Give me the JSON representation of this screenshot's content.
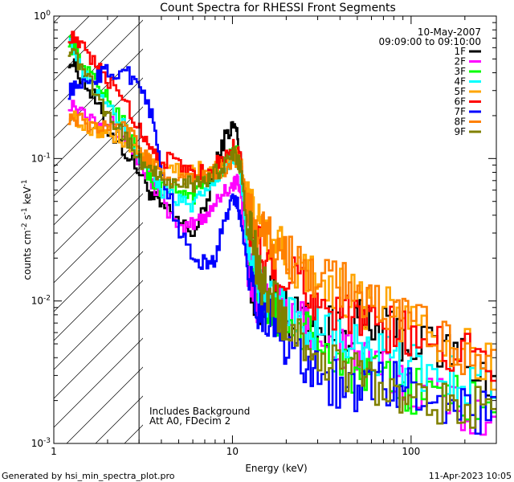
{
  "chart_data": {
    "type": "line",
    "title": "Count Spectra for RHESSI Front Segments",
    "xlabel": "Energy (keV)",
    "ylabel": "counts cm-2 s-1 keV-1",
    "xscale": "log",
    "yscale": "log",
    "xlim": [
      1,
      300
    ],
    "ylim": [
      0.001,
      1
    ],
    "x_tick_labels": [
      "1",
      "10",
      "100"
    ],
    "y_tick_labels": [
      "10-3",
      "10-2",
      "10-1",
      "10 0"
    ],
    "date": "10-May-2007",
    "time_range": "09:09:00 to 09:10:00",
    "hatch_cutoff_kev": 3,
    "annotations": [
      "Includes Background",
      "Att A0, FDecim 2"
    ],
    "legend_position": "top-right",
    "series": [
      {
        "name": "1F",
        "color": "#000000",
        "x": [
          1.2,
          1.4,
          1.7,
          2,
          2.5,
          3,
          3.5,
          4,
          5,
          6,
          7,
          8,
          9,
          10,
          10.5,
          11,
          12,
          13,
          14,
          15,
          17,
          20,
          25,
          30,
          40,
          50,
          60,
          80,
          100,
          150,
          200,
          300
        ],
        "values": [
          0.5,
          0.38,
          0.25,
          0.16,
          0.11,
          0.08,
          0.055,
          0.045,
          0.035,
          0.03,
          0.045,
          0.09,
          0.14,
          0.17,
          0.16,
          0.1,
          0.02,
          0.012,
          0.009,
          0.011,
          0.01,
          0.008,
          0.008,
          0.006,
          0.0065,
          0.007,
          0.006,
          0.006,
          0.005,
          0.0045,
          0.004,
          0.0025
        ]
      },
      {
        "name": "2F",
        "color": "#ff00ff",
        "x": [
          1.2,
          1.4,
          1.7,
          2,
          2.5,
          3,
          3.5,
          4,
          5,
          6,
          7,
          8,
          9,
          10,
          10.5,
          11,
          12,
          13,
          14,
          15,
          17,
          20,
          25,
          30,
          40,
          50,
          60,
          80,
          100,
          150,
          200,
          300
        ],
        "values": [
          0.25,
          0.22,
          0.2,
          0.18,
          0.14,
          0.09,
          0.07,
          0.05,
          0.03,
          0.035,
          0.04,
          0.05,
          0.06,
          0.065,
          0.07,
          0.06,
          0.02,
          0.012,
          0.01,
          0.011,
          0.009,
          0.008,
          0.007,
          0.005,
          0.005,
          0.004,
          0.0035,
          0.003,
          0.0025,
          0.002,
          0.0018,
          0.0015
        ]
      },
      {
        "name": "3F",
        "color": "#00ff00",
        "x": [
          1.2,
          1.4,
          1.7,
          2,
          2.5,
          3,
          3.5,
          4,
          5,
          6,
          7,
          8,
          9,
          10,
          10.5,
          11,
          12,
          13,
          14,
          15,
          17,
          20,
          25,
          30,
          40,
          50,
          60,
          80,
          100,
          150,
          200,
          300
        ],
        "values": [
          0.7,
          0.48,
          0.35,
          0.25,
          0.18,
          0.1,
          0.07,
          0.06,
          0.06,
          0.055,
          0.07,
          0.08,
          0.09,
          0.12,
          0.11,
          0.09,
          0.03,
          0.018,
          0.012,
          0.01,
          0.008,
          0.007,
          0.006,
          0.0045,
          0.004,
          0.003,
          0.0028,
          0.0026,
          0.0024,
          0.0022,
          0.002,
          0.0018
        ]
      },
      {
        "name": "4F",
        "color": "#00ffff",
        "x": [
          1.2,
          1.4,
          1.7,
          2,
          2.5,
          3,
          3.5,
          4,
          5,
          6,
          7,
          8,
          9,
          10,
          10.5,
          11,
          12,
          13,
          14,
          15,
          17,
          20,
          25,
          30,
          40,
          50,
          60,
          80,
          100,
          150,
          200,
          300
        ],
        "values": [
          0.75,
          0.4,
          0.3,
          0.22,
          0.16,
          0.1,
          0.08,
          0.06,
          0.05,
          0.045,
          0.06,
          0.07,
          0.08,
          0.1,
          0.1,
          0.09,
          0.025,
          0.015,
          0.012,
          0.011,
          0.009,
          0.008,
          0.007,
          0.006,
          0.005,
          0.0045,
          0.004,
          0.0038,
          0.0035,
          0.003,
          0.0028,
          0.0025
        ]
      },
      {
        "name": "5F",
        "color": "#ffa500",
        "x": [
          1.2,
          1.4,
          1.7,
          2,
          2.5,
          3,
          3.5,
          4,
          5,
          6,
          7,
          8,
          9,
          10,
          10.5,
          11,
          12,
          13,
          14,
          15,
          17,
          20,
          25,
          30,
          40,
          50,
          60,
          80,
          100,
          150,
          200,
          300
        ],
        "values": [
          0.2,
          0.18,
          0.16,
          0.15,
          0.13,
          0.11,
          0.09,
          0.08,
          0.08,
          0.08,
          0.085,
          0.09,
          0.1,
          0.11,
          0.11,
          0.1,
          0.05,
          0.04,
          0.035,
          0.03,
          0.025,
          0.02,
          0.016,
          0.014,
          0.012,
          0.01,
          0.009,
          0.008,
          0.007,
          0.005,
          0.0045,
          0.003
        ]
      },
      {
        "name": "6F",
        "color": "#ff0000",
        "x": [
          1.2,
          1.4,
          1.7,
          2,
          2.5,
          3,
          3.5,
          4,
          5,
          6,
          7,
          8,
          9,
          10,
          10.5,
          11,
          12,
          13,
          14,
          15,
          17,
          20,
          25,
          30,
          40,
          50,
          60,
          80,
          100,
          150,
          200,
          300
        ],
        "values": [
          0.75,
          0.6,
          0.45,
          0.35,
          0.25,
          0.16,
          0.12,
          0.1,
          0.09,
          0.08,
          0.08,
          0.09,
          0.1,
          0.12,
          0.11,
          0.1,
          0.04,
          0.03,
          0.025,
          0.02,
          0.018,
          0.015,
          0.012,
          0.01,
          0.009,
          0.008,
          0.007,
          0.006,
          0.0055,
          0.005,
          0.0045,
          0.004
        ]
      },
      {
        "name": "7F",
        "color": "#0000ff",
        "x": [
          1.2,
          1.4,
          1.7,
          2,
          2.5,
          3,
          3.5,
          4,
          5,
          6,
          7,
          8,
          9,
          10,
          10.5,
          11,
          12,
          13,
          14,
          15,
          17,
          20,
          25,
          30,
          40,
          50,
          60,
          80,
          100,
          150,
          200,
          300
        ],
        "values": [
          0.3,
          0.32,
          0.38,
          0.4,
          0.4,
          0.35,
          0.2,
          0.08,
          0.03,
          0.02,
          0.018,
          0.02,
          0.04,
          0.05,
          0.05,
          0.04,
          0.02,
          0.012,
          0.009,
          0.008,
          0.007,
          0.005,
          0.004,
          0.003,
          0.0025,
          0.0022,
          0.0028,
          0.0025,
          0.0024,
          0.002,
          0.0018,
          0.0015
        ]
      },
      {
        "name": "8F",
        "color": "#ff8000",
        "x": [
          1.2,
          1.4,
          1.7,
          2,
          2.5,
          3,
          3.5,
          4,
          5,
          6,
          7,
          8,
          9,
          10,
          10.5,
          11,
          12,
          13,
          14,
          15,
          17,
          20,
          25,
          30,
          40,
          50,
          60,
          80,
          100,
          150,
          200,
          300
        ],
        "values": [
          0.2,
          0.18,
          0.17,
          0.16,
          0.16,
          0.12,
          0.09,
          0.08,
          0.07,
          0.07,
          0.075,
          0.08,
          0.085,
          0.1,
          0.1,
          0.09,
          0.045,
          0.04,
          0.03,
          0.028,
          0.024,
          0.02,
          0.018,
          0.015,
          0.013,
          0.011,
          0.01,
          0.008,
          0.007,
          0.005,
          0.0045,
          0.0035
        ]
      },
      {
        "name": "9F",
        "color": "#808000",
        "x": [
          1.2,
          1.4,
          1.7,
          2,
          2.5,
          3,
          3.5,
          4,
          5,
          6,
          7,
          8,
          9,
          10,
          10.5,
          11,
          12,
          13,
          14,
          15,
          17,
          20,
          25,
          30,
          40,
          50,
          60,
          80,
          100,
          150,
          200,
          300
        ],
        "values": [
          0.6,
          0.45,
          0.3,
          0.2,
          0.14,
          0.1,
          0.08,
          0.07,
          0.07,
          0.065,
          0.07,
          0.08,
          0.09,
          0.11,
          0.1,
          0.09,
          0.035,
          0.025,
          0.015,
          0.012,
          0.01,
          0.007,
          0.005,
          0.004,
          0.0035,
          0.003,
          0.0028,
          0.0025,
          0.0022,
          0.002,
          0.0018,
          0.0015
        ]
      }
    ]
  },
  "footer": {
    "left": "Generated by hsi_min_spectra_plot.pro",
    "right": "11-Apr-2023 10:05"
  }
}
